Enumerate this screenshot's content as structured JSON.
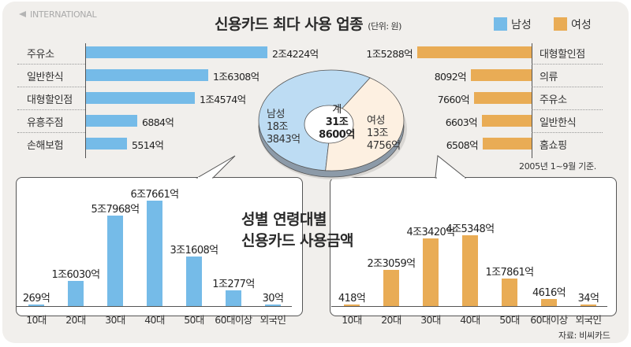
{
  "header": {
    "kicker": "INTERNATIONAL",
    "title": "신용카드 최다 사용 업종",
    "unit": "(단위: 원)"
  },
  "legend": [
    {
      "label": "남성",
      "color": "#75bbe8"
    },
    {
      "label": "여성",
      "color": "#e9ac55"
    }
  ],
  "colors": {
    "male": "#75bbe8",
    "female": "#e9ac55",
    "male_pie": "#bddcf3",
    "female_pie": "#fdf0e1",
    "background": "#f1efec"
  },
  "pie": {
    "total_label": "계",
    "total_line1": "31조",
    "total_line2": "8600억",
    "male_label": "남성",
    "male_line1": "18조",
    "male_line2": "3843억",
    "female_label": "여성",
    "female_line1": "13조",
    "female_line2": "4756억"
  },
  "note_period": "2005년 1~9월 기준.",
  "subtitle_line1": "성별 연령대별",
  "subtitle_line2": "신용카드 사용금액",
  "source": "자료: 비씨카드",
  "chart_data": [
    {
      "type": "bar",
      "orientation": "horizontal",
      "title": "신용카드 최다 사용 업종 - 남성",
      "unit": "억원",
      "categories": [
        "주유소",
        "일반한식",
        "대형할인점",
        "유흥주점",
        "손해보험"
      ],
      "values": [
        24224,
        16308,
        14574,
        6884,
        5514
      ],
      "value_labels": [
        "2조4224억",
        "1조6308억",
        "1조4574억",
        "6884억",
        "5514억"
      ]
    },
    {
      "type": "bar",
      "orientation": "horizontal",
      "title": "신용카드 최다 사용 업종 - 여성",
      "unit": "억원",
      "categories": [
        "대형할인점",
        "의류",
        "주유소",
        "일반한식",
        "홈쇼핑"
      ],
      "values": [
        15288,
        8092,
        7660,
        6603,
        6508
      ],
      "value_labels": [
        "1조5288억",
        "8092억",
        "7660억",
        "6603억",
        "6508억"
      ]
    },
    {
      "type": "pie",
      "title": "계 31조 8600억",
      "unit": "억원",
      "categories": [
        "남성",
        "여성"
      ],
      "values": [
        183843,
        134756
      ],
      "value_labels": [
        "18조 3843억",
        "13조 4756억"
      ],
      "total": 318600
    },
    {
      "type": "bar",
      "title": "성별 연령대별 신용카드 사용금액 - 남성",
      "unit": "억원",
      "categories": [
        "10대",
        "20대",
        "30대",
        "40대",
        "50대",
        "60대이상",
        "외국인"
      ],
      "values": [
        269,
        16030,
        57968,
        67661,
        31608,
        10277,
        30
      ],
      "value_labels": [
        "269억",
        "1조6030억",
        "5조7968억",
        "6조7661억",
        "3조1608억",
        "1조277억",
        "30억"
      ]
    },
    {
      "type": "bar",
      "title": "성별 연령대별 신용카드 사용금액 - 여성",
      "unit": "억원",
      "categories": [
        "10대",
        "20대",
        "30대",
        "40대",
        "50대",
        "60대이상",
        "외국인"
      ],
      "values": [
        418,
        23059,
        43420,
        45348,
        17861,
        4616,
        34
      ],
      "value_labels": [
        "418억",
        "2조3059억",
        "4조3420억",
        "4조5348억",
        "1조7861억",
        "4616억",
        "34억"
      ]
    }
  ]
}
